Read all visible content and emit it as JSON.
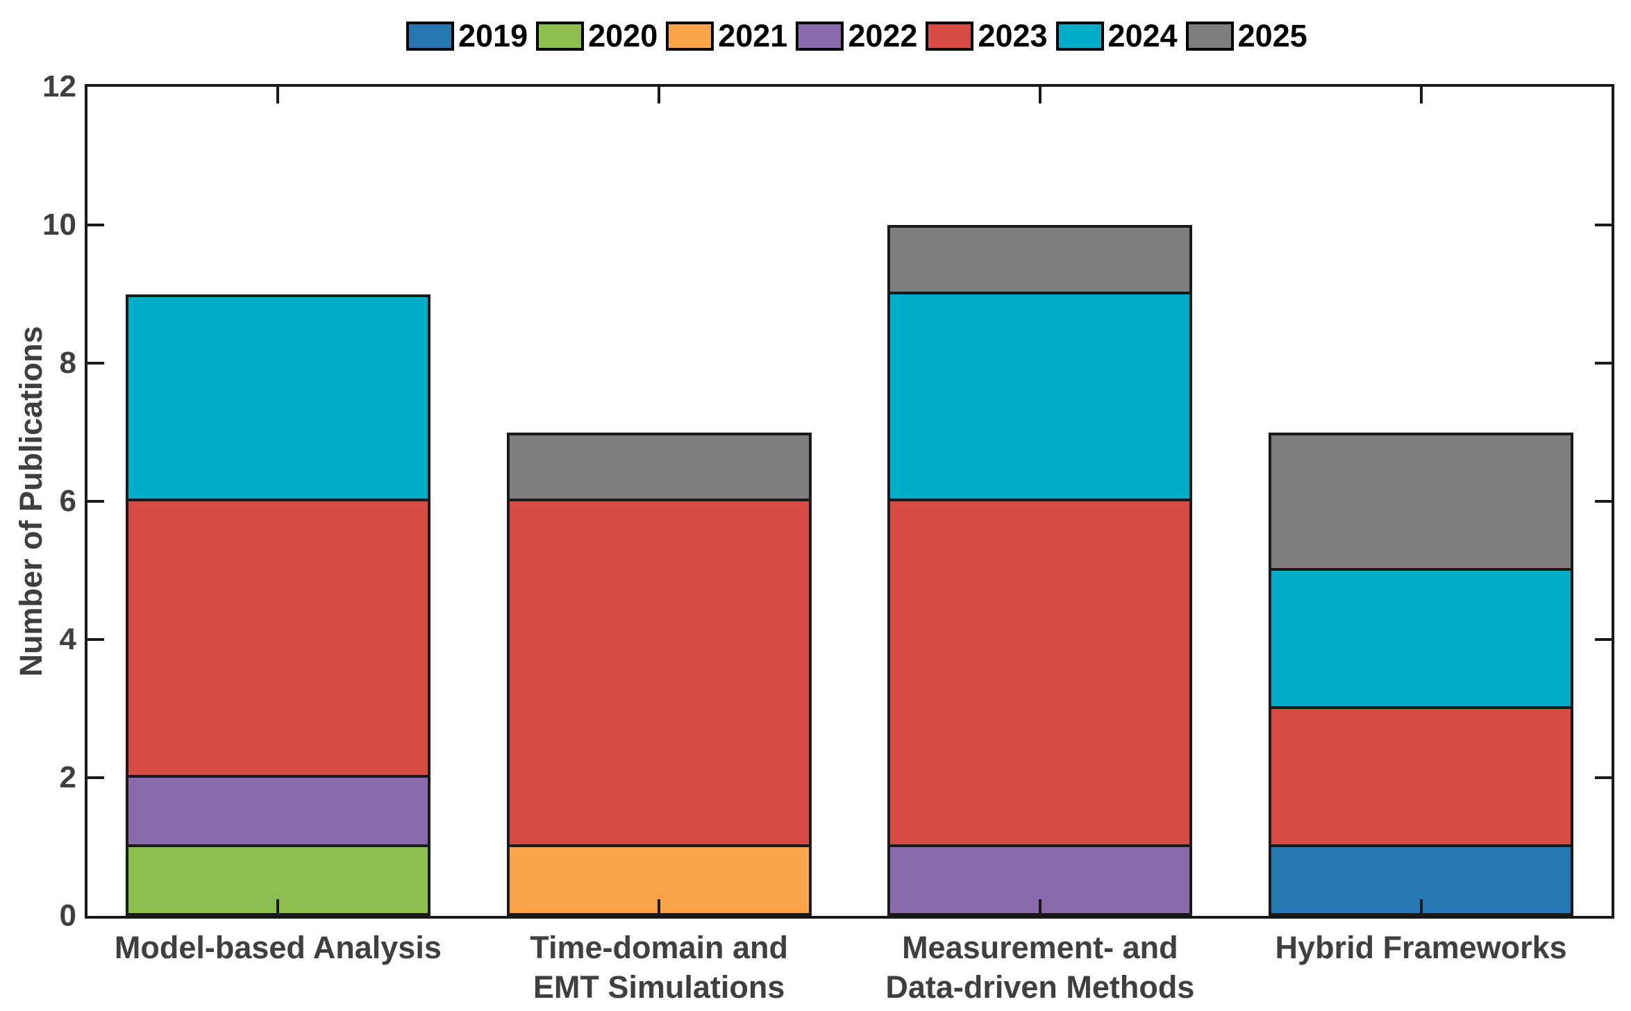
{
  "colors": {
    "background": "#ffffff",
    "axis": "#1a1a1a",
    "tick_label": "#3f3f3f",
    "legend_text": "#000000"
  },
  "chart_data": {
    "type": "bar",
    "stacked": true,
    "title": "",
    "xlabel": "",
    "ylabel": "Number of Publications",
    "ylim": [
      0,
      12
    ],
    "yticks": [
      0,
      2,
      4,
      6,
      8,
      10,
      12
    ],
    "grid": false,
    "legend_position": "top-center",
    "legend_labels": [
      "2019",
      "2020",
      "2021",
      "2022",
      "2023",
      "2024",
      "2025"
    ],
    "categories": [
      "Model-based Analysis",
      "Time-domain and\nEMT Simulations",
      "Measurement- and\nData-driven Methods",
      "Hybrid Frameworks"
    ],
    "series": [
      {
        "name": "2019",
        "color": "#2779B4",
        "values": [
          0,
          0,
          0,
          1
        ]
      },
      {
        "name": "2020",
        "color": "#8CBE50",
        "values": [
          1,
          0,
          0,
          0
        ]
      },
      {
        "name": "2021",
        "color": "#FAA348",
        "values": [
          0,
          1,
          0,
          0
        ]
      },
      {
        "name": "2022",
        "color": "#8A6BAB",
        "values": [
          1,
          0,
          1,
          0
        ]
      },
      {
        "name": "2023",
        "color": "#D94B45",
        "values": [
          4,
          5,
          5,
          2
        ]
      },
      {
        "name": "2024",
        "color": "#00ADC6",
        "values": [
          3,
          0,
          3,
          2
        ]
      },
      {
        "name": "2025",
        "color": "#7E7E7E",
        "values": [
          0,
          1,
          1,
          2
        ]
      }
    ]
  }
}
